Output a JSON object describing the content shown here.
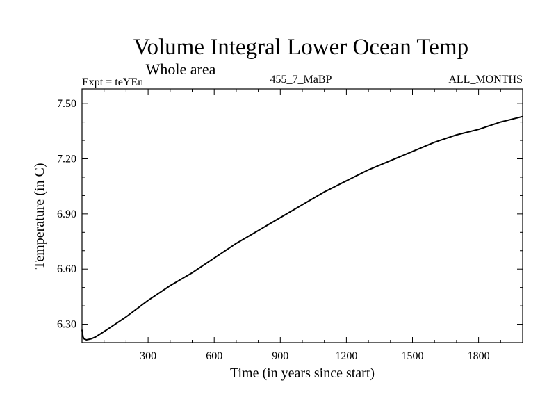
{
  "chart_data": {
    "type": "line",
    "title": "Volume Integral Lower Ocean Temp",
    "subtitle": "Whole area",
    "expt_label": "Expt = teYEn",
    "run_label": "455_7_MaBP",
    "months_label": "ALL_MONTHS",
    "xlabel": "Time (in years since start)",
    "ylabel": "Temperature (in C)",
    "xlim": [
      0,
      2000
    ],
    "ylim": [
      6.2,
      7.58
    ],
    "xticks": [
      300,
      600,
      900,
      1200,
      1500,
      1800
    ],
    "xtick_labels": [
      "300",
      "600",
      "900",
      "1200",
      "1500",
      "1800"
    ],
    "yticks": [
      6.3,
      6.6,
      6.9,
      7.2,
      7.5
    ],
    "ytick_labels": [
      "6.30",
      "6.60",
      "6.90",
      "7.20",
      "7.50"
    ],
    "grid": false,
    "series": [
      {
        "name": "Volume Integral Lower Ocean Temp",
        "color": "#000000",
        "x": [
          0,
          5,
          10,
          20,
          40,
          60,
          80,
          100,
          150,
          200,
          300,
          400,
          500,
          600,
          700,
          800,
          900,
          1000,
          1100,
          1200,
          1300,
          1400,
          1500,
          1600,
          1700,
          1800,
          1900,
          2000
        ],
        "y": [
          6.27,
          6.23,
          6.22,
          6.215,
          6.22,
          6.23,
          6.245,
          6.26,
          6.3,
          6.34,
          6.43,
          6.51,
          6.58,
          6.66,
          6.74,
          6.81,
          6.88,
          6.95,
          7.02,
          7.08,
          7.14,
          7.19,
          7.24,
          7.29,
          7.33,
          7.36,
          7.4,
          7.43
        ]
      }
    ]
  }
}
